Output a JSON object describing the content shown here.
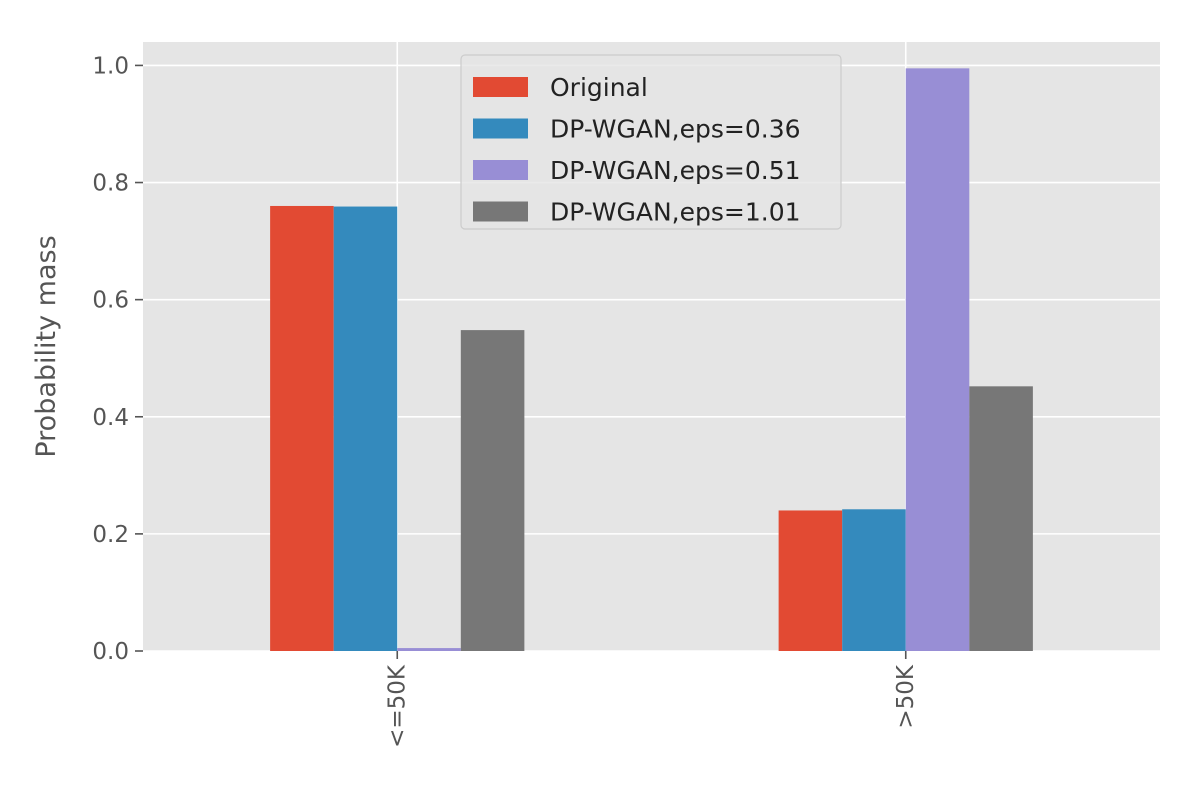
{
  "chart_data": {
    "type": "bar",
    "title": "",
    "xlabel": "",
    "ylabel": "Probability mass",
    "categories": [
      "<=50K",
      ">50K"
    ],
    "series": [
      {
        "name": "Original",
        "values": [
          0.76,
          0.24
        ],
        "color": "#E24A33"
      },
      {
        "name": "DP-WGAN,eps=0.36",
        "values": [
          0.759,
          0.242
        ],
        "color": "#348ABD"
      },
      {
        "name": "DP-WGAN,eps=0.51",
        "values": [
          0.005,
          0.995
        ],
        "color": "#988ED5"
      },
      {
        "name": "DP-WGAN,eps=1.01",
        "values": [
          0.548,
          0.452
        ],
        "color": "#777777"
      }
    ],
    "ylim": [
      0,
      1.04
    ],
    "yticks": [
      "0.0",
      "0.2",
      "0.4",
      "0.6",
      "0.8",
      "1.0"
    ],
    "ytick_values": [
      0,
      0.2,
      0.4,
      0.6,
      0.8,
      1.0
    ],
    "grid": true,
    "legend_position": "top-center",
    "style": {
      "plot_background": "#E5E5E5",
      "grid_color": "#FFFFFF",
      "tick_color": "#555555"
    }
  }
}
